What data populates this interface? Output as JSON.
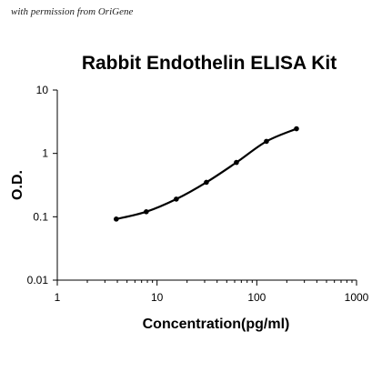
{
  "watermark": "with permission from OriGene",
  "chart_data": {
    "type": "line",
    "title": "Rabbit Endothelin ELISA Kit",
    "xlabel": "Concentration(pg/ml)",
    "ylabel": "O.D.",
    "xscale": "log",
    "yscale": "log",
    "xlim": [
      1,
      1000
    ],
    "ylim": [
      0.01,
      10
    ],
    "x_ticks": [
      "1",
      "10",
      "100",
      "1000"
    ],
    "y_ticks": [
      "0.01",
      "0.1",
      "1",
      "10"
    ],
    "grid": false,
    "legend": false,
    "line_color": "#000000",
    "series": [
      {
        "x": [
          3.9,
          7.8,
          15.6,
          31.25,
          62.5,
          125,
          250
        ],
        "y": [
          0.092,
          0.12,
          0.19,
          0.35,
          0.72,
          1.55,
          2.45
        ]
      }
    ]
  }
}
